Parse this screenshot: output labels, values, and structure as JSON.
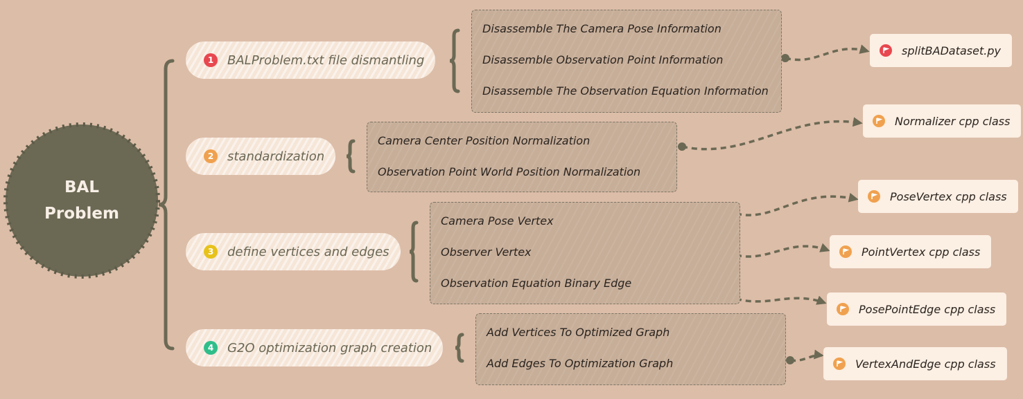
{
  "root": {
    "line1": "BAL",
    "line2": "Problem"
  },
  "colors": {
    "background": "#dcbda8",
    "root_fill": "#6b6954",
    "connector": "#6b6954",
    "badge_1": "#e8474f",
    "badge_2": "#f0a14f",
    "badge_3": "#e7c21b",
    "badge_4": "#2fbe8a",
    "flag_red": "#e8474f",
    "flag_orange": "#f0a14f"
  },
  "branches": [
    {
      "number": "1",
      "label": "BALProblem.txt file dismantling",
      "items": [
        "Disassemble The Camera Pose Information",
        "Disassemble Observation Point Information",
        "Disassemble The Observation Equation Information"
      ]
    },
    {
      "number": "2",
      "label": "standardization",
      "items": [
        "Camera Center Position Normalization",
        "Observation Point World Position Normalization"
      ]
    },
    {
      "number": "3",
      "label": "define vertices and edges",
      "items": [
        "Camera Pose Vertex",
        "Observer Vertex",
        "Observation Equation Binary Edge"
      ]
    },
    {
      "number": "4",
      "label": "G2O optimization graph creation",
      "items": [
        "Add Vertices To Optimized Graph",
        "Add Edges To Optimization Graph"
      ]
    }
  ],
  "tags": [
    {
      "label": "splitBADataset.py",
      "icon": "flag-icon-red"
    },
    {
      "label": "Normalizer cpp class",
      "icon": "flag-icon-orange"
    },
    {
      "label": "PoseVertex cpp class",
      "icon": "flag-icon-orange"
    },
    {
      "label": "PointVertex cpp class",
      "icon": "flag-icon-orange"
    },
    {
      "label": "PosePointEdge cpp class",
      "icon": "flag-icon-orange"
    },
    {
      "label": "VertexAndEdge cpp class",
      "icon": "flag-icon-orange"
    }
  ]
}
